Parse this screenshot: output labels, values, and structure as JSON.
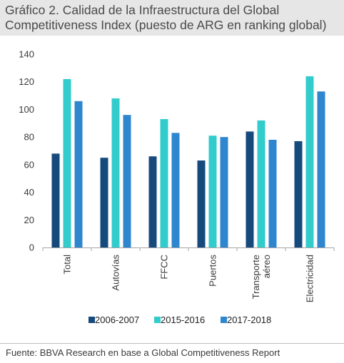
{
  "title_line1": "Gráfico 2. Calidad de la Infraestructura del Global",
  "title_line2": "Competitiveness Index (puesto de ARG en ranking global)",
  "source": "Fuente: BBVA Research en base a Global Competitiveness Report",
  "chart_data": {
    "type": "bar",
    "categories": [
      [
        "Total"
      ],
      [
        "Autovías"
      ],
      [
        "FFCC"
      ],
      [
        "Puertos"
      ],
      [
        "Transporte",
        "aéreo"
      ],
      [
        "Electricidad"
      ]
    ],
    "series": [
      {
        "name": "2006-2007",
        "color": "#174a7c",
        "values": [
          68,
          65,
          66,
          63,
          84,
          77
        ]
      },
      {
        "name": "2015-2016",
        "color": "#33cccc",
        "values": [
          122,
          108,
          93,
          81,
          92,
          124
        ]
      },
      {
        "name": "2017-2018",
        "color": "#2e86cf",
        "values": [
          106,
          96,
          83,
          80,
          78,
          113
        ]
      }
    ],
    "ylim": [
      0,
      140
    ],
    "yticks": [
      0,
      20,
      40,
      60,
      80,
      100,
      120,
      140
    ],
    "grid": false,
    "legend_position": "bottom"
  }
}
